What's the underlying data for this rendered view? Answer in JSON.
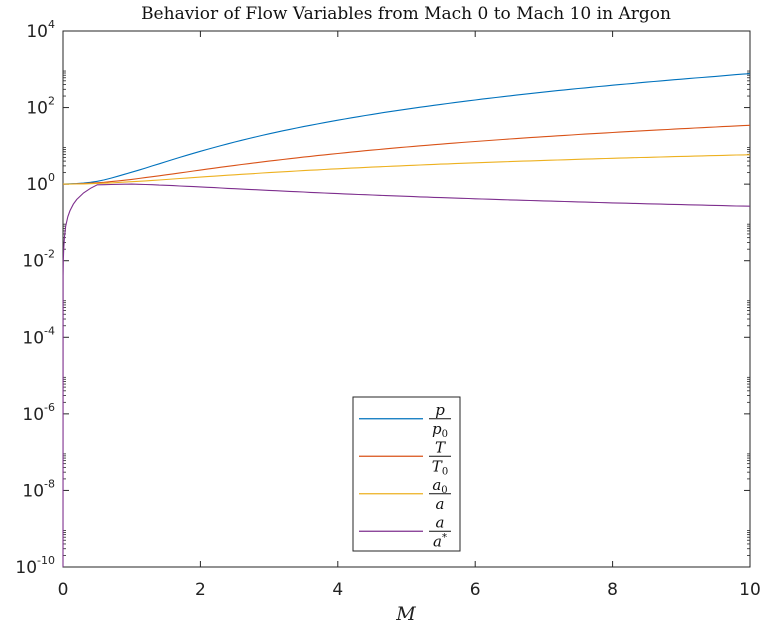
{
  "chart_data": {
    "type": "line",
    "title": "Behavior of Flow Variables from Mach 0 to Mach 10 in Argon",
    "xlabel": "M",
    "ylabel": "",
    "xlim": [
      0,
      10
    ],
    "ylim_log10": [
      -10,
      4
    ],
    "y_scale": "log",
    "grid": false,
    "legend_position": "bottom-center",
    "x_ticks": [
      "0",
      "2",
      "4",
      "6",
      "8",
      "10"
    ],
    "y_ticks": [
      {
        "base": "10",
        "exp": "4"
      },
      {
        "base": "10",
        "exp": "2"
      },
      {
        "base": "10",
        "exp": "0"
      },
      {
        "base": "10",
        "exp": "-2"
      },
      {
        "base": "10",
        "exp": "-4"
      },
      {
        "base": "10",
        "exp": "-6"
      },
      {
        "base": "10",
        "exp": "-8"
      },
      {
        "base": "10",
        "exp": "-10"
      }
    ],
    "x": [
      0,
      0.5,
      1,
      1.5,
      2,
      2.5,
      3,
      3.5,
      4,
      4.5,
      5,
      5.5,
      6,
      6.5,
      7,
      7.5,
      8,
      8.5,
      9,
      9.5,
      10
    ],
    "series": [
      {
        "legend_num": "p",
        "legend_num_sub": "",
        "legend_num_sup": "",
        "legend_den": "p",
        "legend_den_sub": "0",
        "legend_den_sup": "",
        "color": "#0072BD",
        "values": [
          1,
          1.19,
          2.05,
          3.87,
          7.21,
          12.6,
          20.6,
          31.8,
          46.8,
          66.3,
          90.9,
          121,
          158,
          202,
          254,
          314,
          383,
          462,
          552,
          652,
          765
        ]
      },
      {
        "legend_num": "T",
        "legend_num_sub": "",
        "legend_num_sup": "",
        "legend_den": "T",
        "legend_den_sub": "0",
        "legend_den_sup": "",
        "color": "#D95319",
        "values": [
          1,
          1.083,
          1.333,
          1.75,
          2.333,
          3.083,
          4.0,
          5.083,
          6.333,
          7.75,
          9.333,
          11.08,
          13.0,
          15.08,
          17.33,
          19.75,
          22.33,
          25.08,
          28.0,
          31.08,
          34.33
        ]
      },
      {
        "legend_num": "a",
        "legend_num_sub": "0",
        "legend_num_sup": "",
        "legend_den": "a",
        "legend_den_sub": "",
        "legend_den_sup": "",
        "color": "#EDB120",
        "values": [
          1,
          1.041,
          1.155,
          1.323,
          1.528,
          1.756,
          2.0,
          2.255,
          2.517,
          2.784,
          3.055,
          3.329,
          3.606,
          3.884,
          4.163,
          4.444,
          4.726,
          5.008,
          5.292,
          5.575,
          5.859
        ]
      },
      {
        "legend_num": "a",
        "legend_num_sub": "",
        "legend_num_sup": "",
        "legend_den": "a",
        "legend_den_sub": "",
        "legend_den_sup": "*",
        "color": "#7E2F8E",
        "values": [
          1e-10,
          0.96,
          1.0,
          0.93,
          0.845,
          0.76,
          0.686,
          0.622,
          0.567,
          0.52,
          0.48,
          0.445,
          0.415,
          0.388,
          0.364,
          0.343,
          0.324,
          0.307,
          0.292,
          0.278,
          0.265
        ]
      }
    ]
  }
}
